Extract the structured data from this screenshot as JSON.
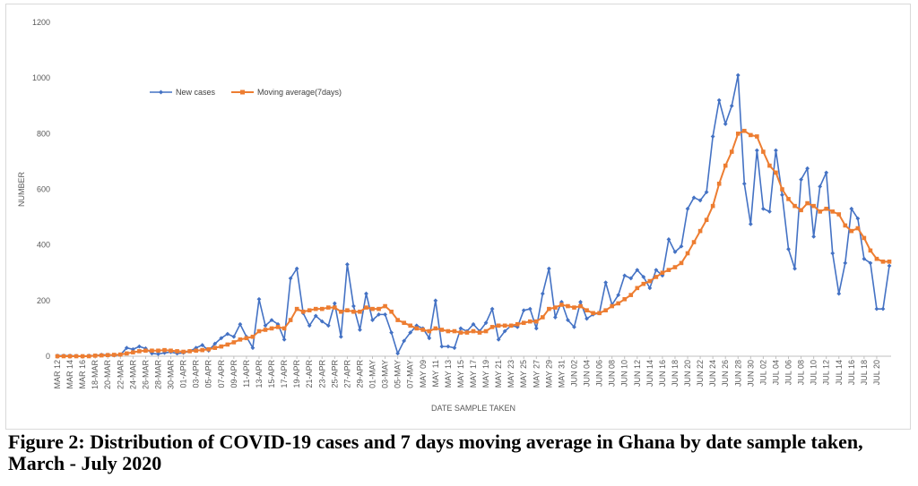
{
  "caption": "Figure 2: Distribution of COVID-19 cases and 7 days moving average in Ghana by date sample taken, March - July 2020",
  "colors": {
    "new_cases": "#4472c4",
    "moving_average": "#ed7d31",
    "grid": "#d9d9d9",
    "axis": "#bfbfbf"
  },
  "chart_data": {
    "type": "line",
    "title": "",
    "xlabel": "DATE SAMPLE TAKEN",
    "ylabel": "NUMBER",
    "ylim": [
      0,
      1200
    ],
    "yticks": [
      0,
      200,
      400,
      600,
      800,
      1000,
      1200
    ],
    "grid": false,
    "legend_position": "top-left",
    "x_start": "2020-03-12",
    "x_end": "2020-07-20",
    "x_tick_labels": [
      "MAR 12",
      "MAR 14",
      "MAR 16",
      "18-MAR",
      "20-MAR",
      "22-MAR",
      "24-MAR",
      "26-MAR",
      "28-MAR",
      "30-MAR",
      "01-APR",
      "03-APR",
      "05-APR",
      "07-APR",
      "09-APR",
      "11-APR",
      "13-APR",
      "15-APR",
      "17-APR",
      "19-APR",
      "21-APR",
      "23-APR",
      "25-APR",
      "27-APR",
      "29-APR",
      "01-MAY",
      "03-MAY",
      "05-MAY",
      "07-MAY",
      "MAY 09",
      "MAY 11",
      "MAY 13",
      "MAY 15",
      "MAY 17",
      "MAY 19",
      "MAY 21",
      "MAY 23",
      "MAY 25",
      "MAY 27",
      "MAY 29",
      "MAY 31",
      "JUN 02",
      "JUN 04",
      "JUN 06",
      "JUN 08",
      "JUN 10",
      "JUN 12",
      "JUN 14",
      "JUN 16",
      "JUN 18",
      "JUN 20",
      "JUN 22",
      "JUN 24",
      "JUN 26",
      "JUN 28",
      "JUN 30",
      "JUL 02",
      "JUL 04",
      "JUL 06",
      "JUL 08",
      "JUL 10",
      "JUL 12",
      "JUL 14",
      "JUL 16",
      "JUL 18",
      "JUL 20"
    ],
    "series": [
      {
        "name": "New cases",
        "marker": "diamond",
        "values": [
          2,
          2,
          2,
          1,
          0,
          2,
          2,
          5,
          5,
          3,
          5,
          30,
          25,
          35,
          28,
          10,
          8,
          12,
          15,
          10,
          12,
          18,
          30,
          40,
          20,
          45,
          65,
          80,
          70,
          115,
          70,
          30,
          205,
          110,
          130,
          115,
          60,
          280,
          315,
          155,
          110,
          145,
          125,
          110,
          190,
          70,
          330,
          180,
          95,
          225,
          130,
          150,
          150,
          85,
          10,
          55,
          85,
          110,
          100,
          65,
          200,
          35,
          35,
          30,
          100,
          90,
          115,
          90,
          120,
          170,
          60,
          90,
          110,
          105,
          165,
          170,
          100,
          225,
          315,
          140,
          195,
          130,
          105,
          195,
          135,
          150,
          155,
          265,
          185,
          220,
          290,
          280,
          310,
          285,
          245,
          310,
          290,
          420,
          375,
          395,
          530,
          570,
          560,
          590,
          790,
          920,
          835,
          900,
          1010,
          620,
          475,
          740,
          530,
          520,
          740,
          580,
          385,
          315,
          635,
          675,
          430,
          610,
          660,
          370,
          225,
          335,
          530,
          495,
          350,
          335,
          170,
          170,
          325
        ]
      },
      {
        "name": "Moving average(7days)",
        "marker": "square",
        "values": [
          0,
          0,
          0,
          0,
          0,
          0,
          2,
          3,
          4,
          5,
          6,
          10,
          14,
          18,
          20,
          20,
          20,
          22,
          20,
          18,
          16,
          18,
          20,
          22,
          25,
          30,
          35,
          42,
          50,
          60,
          65,
          70,
          90,
          95,
          100,
          105,
          100,
          130,
          170,
          160,
          165,
          170,
          170,
          175,
          175,
          160,
          165,
          160,
          160,
          175,
          170,
          170,
          180,
          160,
          130,
          120,
          110,
          100,
          95,
          90,
          100,
          95,
          90,
          90,
          85,
          85,
          90,
          85,
          90,
          105,
          110,
          110,
          110,
          115,
          120,
          125,
          125,
          140,
          170,
          175,
          185,
          180,
          175,
          180,
          165,
          155,
          155,
          165,
          180,
          190,
          205,
          220,
          245,
          260,
          270,
          285,
          300,
          310,
          320,
          335,
          370,
          410,
          450,
          490,
          540,
          620,
          685,
          735,
          800,
          810,
          795,
          790,
          735,
          685,
          660,
          600,
          565,
          540,
          525,
          550,
          540,
          520,
          530,
          520,
          510,
          470,
          450,
          460,
          425,
          380,
          350,
          340,
          340
        ]
      }
    ]
  }
}
